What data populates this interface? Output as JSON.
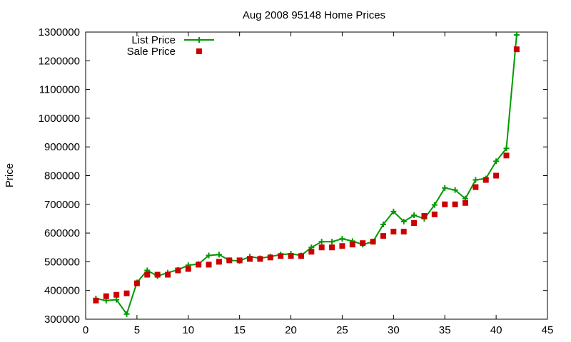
{
  "chart_data": {
    "type": "line",
    "title": "Aug 2008 95148 Home Prices",
    "xlabel": "",
    "ylabel": "Price",
    "xlim": [
      0,
      45
    ],
    "ylim": [
      300000,
      1300000
    ],
    "x_ticks": [
      0,
      5,
      10,
      15,
      20,
      25,
      30,
      35,
      40,
      45
    ],
    "y_ticks": [
      300000,
      400000,
      500000,
      600000,
      700000,
      800000,
      900000,
      1000000,
      1100000,
      1200000,
      1300000
    ],
    "x_tick_labels": [
      "0",
      "5",
      "10",
      "15",
      "20",
      "25",
      "30",
      "35",
      "40",
      "45"
    ],
    "y_tick_labels": [
      "300000",
      "400000",
      "500000",
      "600000",
      "700000",
      "800000",
      "900000",
      "1000000",
      "1100000",
      "1200000",
      "1300000"
    ],
    "grid": false,
    "legend": {
      "placement": "top-left"
    },
    "x": [
      1,
      2,
      3,
      4,
      5,
      6,
      7,
      8,
      9,
      10,
      11,
      12,
      13,
      14,
      15,
      16,
      17,
      18,
      19,
      20,
      21,
      22,
      23,
      24,
      25,
      26,
      27,
      28,
      29,
      30,
      31,
      32,
      33,
      34,
      35,
      36,
      37,
      38,
      39,
      40,
      41,
      42
    ],
    "series": [
      {
        "name": "List Price",
        "style": "linespoints",
        "marker": "plus",
        "color": "#009900",
        "values": [
          372000,
          365000,
          368000,
          318000,
          428000,
          470000,
          450000,
          462000,
          472000,
          488000,
          492000,
          522000,
          525000,
          505000,
          503000,
          518000,
          512000,
          518000,
          525000,
          528000,
          522000,
          550000,
          570000,
          570000,
          580000,
          572000,
          560000,
          570000,
          630000,
          675000,
          640000,
          662000,
          650000,
          698000,
          757000,
          750000,
          720000,
          785000,
          790000,
          850000,
          895000,
          1290000
        ]
      },
      {
        "name": "Sale Price",
        "style": "points",
        "marker": "square",
        "color": "#cc0000",
        "values": [
          365000,
          380000,
          385000,
          390000,
          425000,
          455000,
          455000,
          455000,
          470000,
          475000,
          490000,
          490000,
          500000,
          505000,
          505000,
          510000,
          510000,
          515000,
          520000,
          520000,
          520000,
          535000,
          550000,
          550000,
          555000,
          560000,
          565000,
          570000,
          590000,
          605000,
          605000,
          635000,
          660000,
          665000,
          700000,
          700000,
          705000,
          760000,
          785000,
          800000,
          870000,
          1240000
        ]
      }
    ]
  }
}
